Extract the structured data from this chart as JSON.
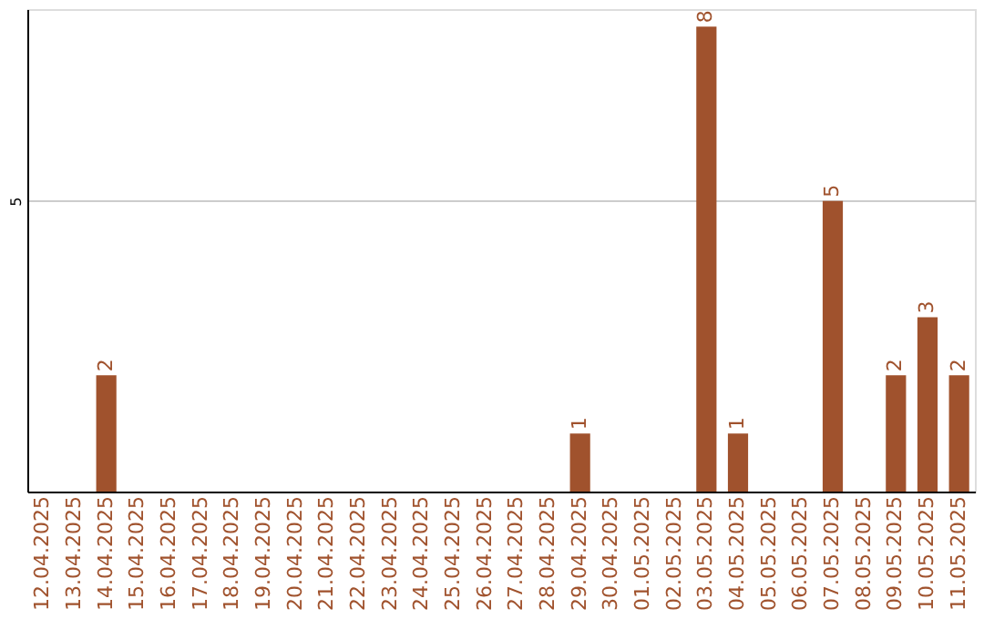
{
  "chart_data": {
    "type": "bar",
    "categories": [
      "12.04.2025",
      "13.04.2025",
      "14.04.2025",
      "15.04.2025",
      "16.04.2025",
      "17.04.2025",
      "18.04.2025",
      "19.04.2025",
      "20.04.2025",
      "21.04.2025",
      "22.04.2025",
      "23.04.2025",
      "24.04.2025",
      "25.04.2025",
      "26.04.2025",
      "27.04.2025",
      "28.04.2025",
      "29.04.2025",
      "30.04.2025",
      "01.05.2025",
      "02.05.2025",
      "03.05.2025",
      "04.05.2025",
      "05.05.2025",
      "06.05.2025",
      "07.05.2025",
      "08.05.2025",
      "09.05.2025",
      "10.05.2025",
      "11.05.2025"
    ],
    "values": [
      0,
      0,
      2,
      0,
      0,
      0,
      0,
      0,
      0,
      0,
      0,
      0,
      0,
      0,
      0,
      0,
      0,
      1,
      0,
      0,
      0,
      8,
      1,
      0,
      0,
      5,
      0,
      2,
      3,
      2
    ],
    "value_labels": [
      null,
      null,
      "2",
      null,
      null,
      null,
      null,
      null,
      null,
      null,
      null,
      null,
      null,
      null,
      null,
      null,
      null,
      "1",
      null,
      null,
      null,
      "8",
      "1",
      null,
      null,
      "5",
      null,
      "2",
      "3",
      "2"
    ],
    "color": "#a0522d",
    "ylim": [
      0,
      8.3
    ],
    "yticks": [
      5
    ],
    "grid": "y"
  }
}
